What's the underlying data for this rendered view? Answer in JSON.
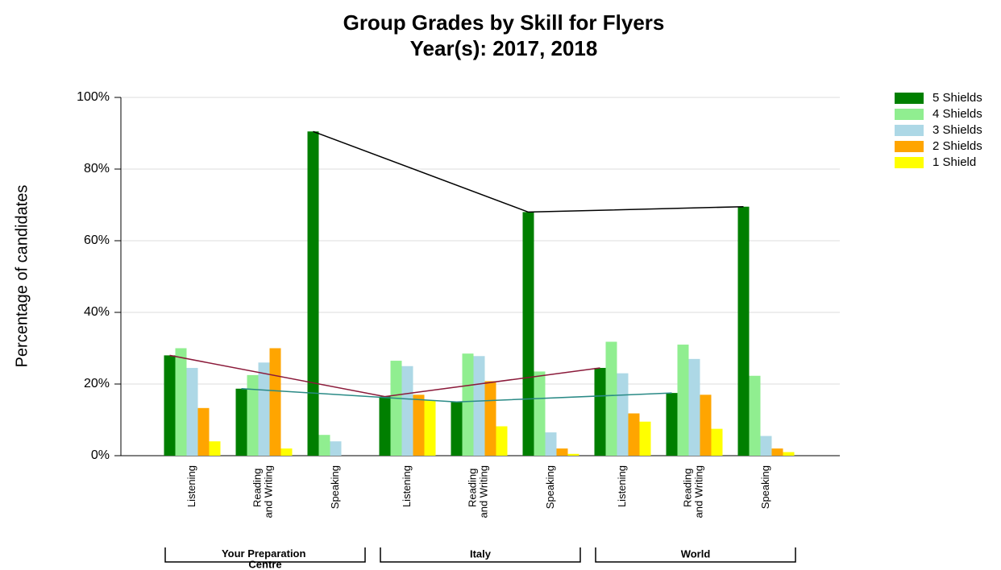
{
  "chart_data": {
    "type": "bar",
    "title": "Group Grades by Skill for Flyers",
    "subtitle": "Year(s): 2017, 2018",
    "y_label": "Percentage of candidates",
    "categories": [
      "Listening",
      "Reading and Writing",
      "Speaking",
      "Listening",
      "Reading and Writing",
      "Speaking",
      "Listening",
      "Reading and Writing",
      "Speaking"
    ],
    "groups": [
      "Your Preparation Centre",
      "Italy",
      "World"
    ],
    "series": [
      {
        "name": "5 Shields",
        "color": "#007f00",
        "values": [
          28,
          18.7,
          90.5,
          16.5,
          15,
          68,
          24.5,
          17.5,
          69.5
        ]
      },
      {
        "name": "4 Shields",
        "color": "#90ee90",
        "values": [
          30,
          22.5,
          5.8,
          26.5,
          28.5,
          23.5,
          31.8,
          31,
          22.3
        ]
      },
      {
        "name": "3 Shields",
        "color": "#add8e6",
        "values": [
          24.5,
          26,
          4,
          25,
          27.8,
          6.5,
          23,
          27,
          5.5
        ]
      },
      {
        "name": "2 Shields",
        "color": "#ffa500",
        "values": [
          13.3,
          30,
          0,
          17,
          20.8,
          2,
          11.8,
          17,
          2
        ]
      },
      {
        "name": "1 Shield",
        "color": "#ffff00",
        "values": [
          4,
          2,
          0,
          15.5,
          8.2,
          0.5,
          9.5,
          7.5,
          1
        ]
      }
    ],
    "trend_colors": [
      "#8b1a3a",
      "#2a8a86",
      "#000000"
    ],
    "ylim": [
      0,
      100
    ],
    "yticks": [
      {
        "value": 0,
        "label": "0%"
      },
      {
        "value": 20,
        "label": "20%"
      },
      {
        "value": 40,
        "label": "40%"
      },
      {
        "value": 60,
        "label": "60%"
      },
      {
        "value": 80,
        "label": "80%"
      },
      {
        "value": 100,
        "label": "100%"
      }
    ],
    "grid": true,
    "legend": "top-right"
  }
}
